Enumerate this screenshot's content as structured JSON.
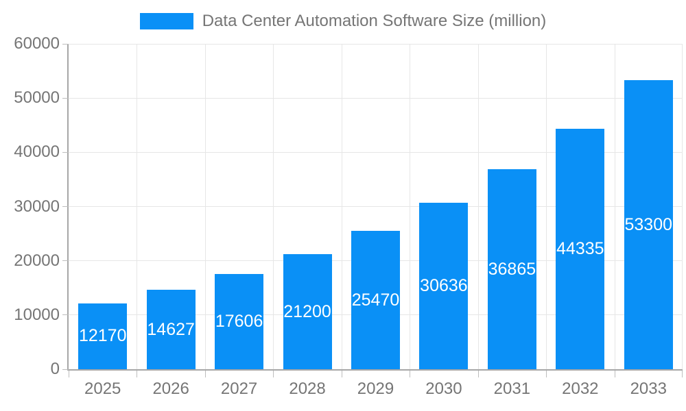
{
  "chart_data": {
    "type": "bar",
    "title": "Data Center Automation Software Size (million)",
    "categories": [
      "2025",
      "2026",
      "2027",
      "2028",
      "2029",
      "2030",
      "2031",
      "2032",
      "2033"
    ],
    "values": [
      12170,
      14627,
      17606,
      21200,
      25470,
      30636,
      36865,
      44335,
      53300
    ],
    "series": [
      {
        "name": "Data Center Automation Software Size (million)",
        "values": [
          12170,
          14627,
          17606,
          21200,
          25470,
          30636,
          36865,
          44335,
          53300
        ]
      }
    ],
    "xlabel": "",
    "ylabel": "",
    "ylim": [
      0,
      60000
    ],
    "yticks": [
      0,
      10000,
      20000,
      30000,
      40000,
      50000,
      60000
    ],
    "ytick_labels": [
      "0",
      "10000",
      "20000",
      "30000",
      "40000",
      "50000",
      "60000"
    ],
    "grid": true,
    "legend_position": "top-center",
    "bar_labels_position": "inside-center",
    "colors": {
      "bar": "#0a90f6",
      "bar_label": "#ffffff",
      "axis_text": "#757575",
      "legend_text": "#757575",
      "grid_line": "#e6e6e6",
      "axis_line": "#a6a6a6",
      "tick": "#bdbdbd",
      "background": "#ffffff"
    }
  }
}
